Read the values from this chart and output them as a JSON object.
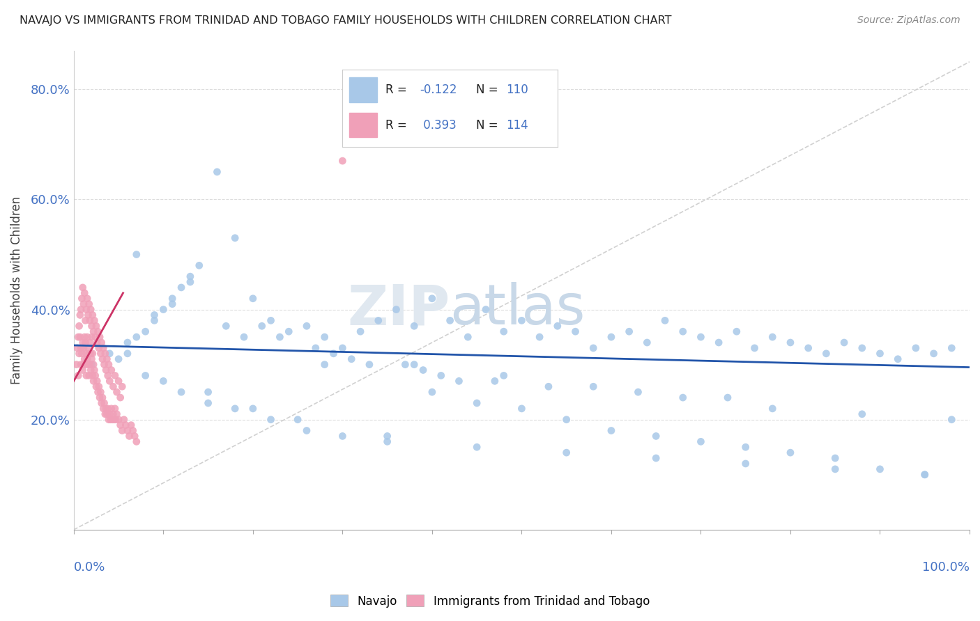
{
  "title": "NAVAJO VS IMMIGRANTS FROM TRINIDAD AND TOBAGO FAMILY HOUSEHOLDS WITH CHILDREN CORRELATION CHART",
  "source": "Source: ZipAtlas.com",
  "ylabel": "Family Households with Children",
  "navajo_color": "#a8c8e8",
  "trinidad_color": "#f0a0b8",
  "navajo_line_color": "#2255aa",
  "trinidad_line_color": "#cc3366",
  "ref_line_color": "#cccccc",
  "axis_label_color": "#4472c4",
  "legend_r_color": "#4472c4",
  "navajo_x": [
    0.02,
    0.04,
    0.05,
    0.06,
    0.07,
    0.08,
    0.09,
    0.1,
    0.11,
    0.12,
    0.13,
    0.14,
    0.16,
    0.18,
    0.2,
    0.22,
    0.24,
    0.26,
    0.28,
    0.3,
    0.32,
    0.34,
    0.36,
    0.38,
    0.4,
    0.42,
    0.44,
    0.46,
    0.48,
    0.5,
    0.52,
    0.54,
    0.56,
    0.58,
    0.6,
    0.62,
    0.64,
    0.66,
    0.68,
    0.7,
    0.72,
    0.74,
    0.76,
    0.78,
    0.8,
    0.82,
    0.84,
    0.86,
    0.88,
    0.9,
    0.92,
    0.94,
    0.96,
    0.98,
    0.08,
    0.1,
    0.12,
    0.15,
    0.18,
    0.22,
    0.26,
    0.3,
    0.35,
    0.4,
    0.45,
    0.5,
    0.55,
    0.6,
    0.65,
    0.7,
    0.75,
    0.8,
    0.85,
    0.9,
    0.95,
    0.25,
    0.35,
    0.45,
    0.55,
    0.65,
    0.75,
    0.85,
    0.95,
    0.15,
    0.2,
    0.28,
    0.38,
    0.48,
    0.58,
    0.68,
    0.78,
    0.88,
    0.98,
    0.06,
    0.07,
    0.09,
    0.11,
    0.13,
    0.17,
    0.19,
    0.21,
    0.23,
    0.27,
    0.29,
    0.31,
    0.33,
    0.37,
    0.39,
    0.41,
    0.43,
    0.47,
    0.53,
    0.63,
    0.73
  ],
  "navajo_y": [
    0.3,
    0.32,
    0.31,
    0.34,
    0.35,
    0.36,
    0.38,
    0.4,
    0.42,
    0.44,
    0.46,
    0.48,
    0.65,
    0.53,
    0.42,
    0.38,
    0.36,
    0.37,
    0.35,
    0.33,
    0.36,
    0.38,
    0.4,
    0.37,
    0.42,
    0.38,
    0.35,
    0.4,
    0.36,
    0.38,
    0.35,
    0.37,
    0.36,
    0.33,
    0.35,
    0.36,
    0.34,
    0.38,
    0.36,
    0.35,
    0.34,
    0.36,
    0.33,
    0.35,
    0.34,
    0.33,
    0.32,
    0.34,
    0.33,
    0.32,
    0.31,
    0.33,
    0.32,
    0.33,
    0.28,
    0.27,
    0.25,
    0.23,
    0.22,
    0.2,
    0.18,
    0.17,
    0.16,
    0.25,
    0.23,
    0.22,
    0.2,
    0.18,
    0.17,
    0.16,
    0.15,
    0.14,
    0.13,
    0.11,
    0.1,
    0.2,
    0.17,
    0.15,
    0.14,
    0.13,
    0.12,
    0.11,
    0.1,
    0.25,
    0.22,
    0.3,
    0.3,
    0.28,
    0.26,
    0.24,
    0.22,
    0.21,
    0.2,
    0.32,
    0.5,
    0.39,
    0.41,
    0.45,
    0.37,
    0.35,
    0.37,
    0.35,
    0.33,
    0.32,
    0.31,
    0.3,
    0.3,
    0.29,
    0.28,
    0.27,
    0.27,
    0.26,
    0.25,
    0.24
  ],
  "trinidad_x": [
    0.003,
    0.005,
    0.006,
    0.007,
    0.008,
    0.008,
    0.009,
    0.01,
    0.01,
    0.011,
    0.011,
    0.012,
    0.012,
    0.013,
    0.013,
    0.014,
    0.014,
    0.015,
    0.015,
    0.016,
    0.016,
    0.017,
    0.017,
    0.018,
    0.018,
    0.019,
    0.019,
    0.02,
    0.02,
    0.021,
    0.021,
    0.022,
    0.022,
    0.023,
    0.024,
    0.025,
    0.026,
    0.027,
    0.028,
    0.029,
    0.03,
    0.031,
    0.032,
    0.033,
    0.034,
    0.035,
    0.036,
    0.037,
    0.038,
    0.039,
    0.04,
    0.041,
    0.042,
    0.043,
    0.044,
    0.045,
    0.046,
    0.047,
    0.048,
    0.05,
    0.052,
    0.054,
    0.056,
    0.058,
    0.06,
    0.062,
    0.064,
    0.066,
    0.068,
    0.07,
    0.004,
    0.005,
    0.006,
    0.007,
    0.008,
    0.009,
    0.01,
    0.011,
    0.012,
    0.013,
    0.014,
    0.015,
    0.016,
    0.017,
    0.018,
    0.019,
    0.02,
    0.021,
    0.022,
    0.023,
    0.024,
    0.025,
    0.026,
    0.027,
    0.028,
    0.029,
    0.03,
    0.031,
    0.032,
    0.033,
    0.034,
    0.035,
    0.036,
    0.037,
    0.038,
    0.039,
    0.04,
    0.042,
    0.044,
    0.046,
    0.048,
    0.05,
    0.052,
    0.054
  ],
  "trinidad_y": [
    0.3,
    0.28,
    0.32,
    0.35,
    0.3,
    0.33,
    0.32,
    0.29,
    0.34,
    0.3,
    0.33,
    0.31,
    0.35,
    0.3,
    0.34,
    0.32,
    0.28,
    0.31,
    0.35,
    0.3,
    0.33,
    0.32,
    0.28,
    0.3,
    0.34,
    0.29,
    0.32,
    0.31,
    0.35,
    0.28,
    0.32,
    0.3,
    0.27,
    0.29,
    0.28,
    0.26,
    0.27,
    0.25,
    0.26,
    0.24,
    0.25,
    0.23,
    0.24,
    0.22,
    0.23,
    0.21,
    0.22,
    0.21,
    0.22,
    0.2,
    0.21,
    0.2,
    0.22,
    0.2,
    0.21,
    0.2,
    0.22,
    0.2,
    0.21,
    0.2,
    0.19,
    0.18,
    0.2,
    0.19,
    0.18,
    0.17,
    0.19,
    0.18,
    0.17,
    0.16,
    0.33,
    0.35,
    0.37,
    0.39,
    0.4,
    0.42,
    0.44,
    0.41,
    0.43,
    0.38,
    0.4,
    0.42,
    0.39,
    0.41,
    0.38,
    0.4,
    0.37,
    0.39,
    0.36,
    0.38,
    0.35,
    0.37,
    0.34,
    0.36,
    0.33,
    0.35,
    0.32,
    0.34,
    0.31,
    0.33,
    0.3,
    0.32,
    0.29,
    0.31,
    0.28,
    0.3,
    0.27,
    0.29,
    0.26,
    0.28,
    0.25,
    0.27,
    0.24,
    0.26
  ],
  "trinidad_outlier_x": [
    0.3
  ],
  "trinidad_outlier_y": [
    0.67
  ],
  "navajo_line_x0": 0.0,
  "navajo_line_x1": 1.0,
  "navajo_line_y0": 0.335,
  "navajo_line_y1": 0.295,
  "trinidad_line_x0": 0.0,
  "trinidad_line_x1": 0.055,
  "trinidad_line_y0": 0.27,
  "trinidad_line_y1": 0.43,
  "ref_line_x0": 0.0,
  "ref_line_x1": 1.0,
  "ref_line_y0": 0.0,
  "ref_line_y1": 0.85,
  "xlim": [
    0.0,
    1.0
  ],
  "ylim": [
    0.0,
    0.87
  ],
  "yticks": [
    0.2,
    0.4,
    0.6,
    0.8
  ],
  "ytick_labels": [
    "20.0%",
    "40.0%",
    "60.0%",
    "80.0%"
  ]
}
